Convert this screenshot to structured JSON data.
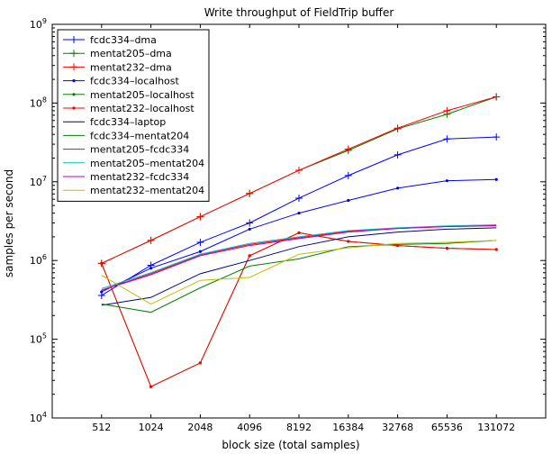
{
  "chart_data": {
    "type": "line",
    "title": "Write throughput of FieldTrip buffer",
    "xlabel": "block size (total samples)",
    "ylabel": "samples per second",
    "x": [
      512,
      1024,
      2048,
      4096,
      8192,
      16384,
      32768,
      65536,
      131072
    ],
    "xscale": "log2",
    "yscale": "log10",
    "xlim": [
      256,
      262144
    ],
    "ylim": [
      10000,
      1000000000
    ],
    "x_ticks": [
      "512",
      "1024",
      "2048",
      "4096",
      "8192",
      "16384",
      "32768",
      "65536",
      "131072"
    ],
    "y_ticks": [
      {
        "base": "10",
        "exp": "4",
        "value": 10000
      },
      {
        "base": "10",
        "exp": "5",
        "value": 100000
      },
      {
        "base": "10",
        "exp": "6",
        "value": 1000000
      },
      {
        "base": "10",
        "exp": "7",
        "value": 10000000
      },
      {
        "base": "10",
        "exp": "8",
        "value": 100000000
      },
      {
        "base": "10",
        "exp": "9",
        "value": 1000000000
      }
    ],
    "grid": false,
    "legend_position": "top-left",
    "series": [
      {
        "name": "fcdc334–dma",
        "color": "#0000ff",
        "marker": "plus",
        "values": [
          360000,
          870000,
          1700000,
          3000000,
          6200000,
          12000000,
          22000000,
          35000000,
          37000000
        ]
      },
      {
        "name": "mentat205–dma",
        "color": "#008000",
        "marker": "plus",
        "values": [
          920000,
          1800000,
          3600000,
          7100000,
          14000000,
          25000000,
          47000000,
          72000000,
          120000000
        ]
      },
      {
        "name": "mentat232–dma",
        "color": "#ff0000",
        "marker": "plus",
        "values": [
          920000,
          1800000,
          3600000,
          7100000,
          14000000,
          26000000,
          48000000,
          80000000,
          120000000
        ]
      },
      {
        "name": "fcdc334–localhost",
        "color": "#0000ff",
        "marker": "dot",
        "values": [
          400000,
          800000,
          1300000,
          2500000,
          4000000,
          5800000,
          8300000,
          10300000,
          10700000
        ]
      },
      {
        "name": "mentat205–localhost",
        "color": "#008000",
        "marker": "dot",
        "values": [
          920000,
          25000,
          50000,
          1150000,
          2250000,
          1750000,
          1550000,
          1430000,
          1380000
        ]
      },
      {
        "name": "mentat232–localhost",
        "color": "#ff0000",
        "marker": "dot",
        "values": [
          920000,
          25000,
          50000,
          1150000,
          2250000,
          1750000,
          1550000,
          1430000,
          1380000
        ]
      },
      {
        "name": "fcdc334–laptop",
        "color": "#000080",
        "marker": "none",
        "values": [
          270000,
          340000,
          680000,
          1000000,
          1500000,
          2000000,
          2300000,
          2500000,
          2600000
        ]
      },
      {
        "name": "fcdc334–mentat204",
        "color": "#008000",
        "marker": "none",
        "values": [
          280000,
          220000,
          450000,
          850000,
          1050000,
          1500000,
          1600000,
          1650000,
          1800000
        ]
      },
      {
        "name": "mentat205–fcdc334",
        "color": "#ff0000",
        "marker": "none",
        "values": [
          420000,
          680000,
          1180000,
          1600000,
          1950000,
          2350000,
          2550000,
          2700000,
          2800000
        ]
      },
      {
        "name": "mentat205–mentat204",
        "color": "#00bfbf",
        "marker": "none",
        "values": [
          440000,
          700000,
          1200000,
          1650000,
          2000000,
          2400000,
          2600000,
          2750000,
          2850000
        ]
      },
      {
        "name": "mentat232–fcdc334",
        "color": "#bf00bf",
        "marker": "none",
        "values": [
          420000,
          660000,
          1150000,
          1550000,
          1900000,
          2300000,
          2550000,
          2700000,
          2750000
        ]
      },
      {
        "name": "mentat232–mentat204",
        "color": "#bfbf00",
        "marker": "none",
        "values": [
          650000,
          280000,
          560000,
          610000,
          1200000,
          1450000,
          1650000,
          1700000,
          1800000
        ]
      }
    ]
  }
}
